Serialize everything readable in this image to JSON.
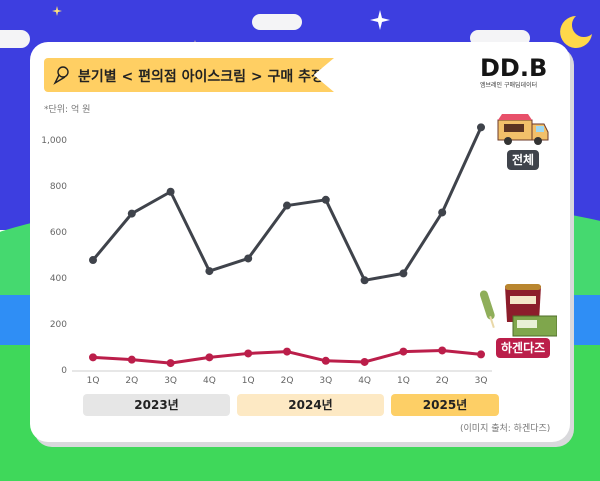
{
  "title": "분기별 < 편의점 아이스크림 > 구매 추정액",
  "unit_note": "*단위: 억 원",
  "logo": {
    "main": "DD.B",
    "sub": "엠브레인 구매딥데이터"
  },
  "source_note": "(이미지 출처: 하겐다즈)",
  "years": [
    "2023년",
    "2024년",
    "2025년"
  ],
  "year_colors": [
    "#e6e6e6",
    "#fde9c4",
    "#fdcf66"
  ],
  "chart_data": {
    "type": "line",
    "title": "분기별 < 편의점 아이스크림 > 구매 추정액",
    "ylabel": "",
    "xlabel": "",
    "ylim": [
      0,
      1100
    ],
    "yticks": [
      0,
      200,
      400,
      600,
      800,
      "1,000"
    ],
    "grid": false,
    "categories": [
      "1Q",
      "2Q",
      "3Q",
      "4Q",
      "1Q",
      "2Q",
      "3Q",
      "4Q",
      "1Q",
      "2Q",
      "3Q"
    ],
    "series": [
      {
        "name": "전체",
        "color": "#3f434b",
        "values": [
          478,
          680,
          775,
          430,
          485,
          715,
          740,
          390,
          420,
          685,
          1055
        ]
      },
      {
        "name": "하겐다즈",
        "color": "#bb1e4a",
        "values": [
          55,
          45,
          30,
          55,
          72,
          80,
          40,
          35,
          80,
          85,
          68
        ]
      }
    ]
  }
}
